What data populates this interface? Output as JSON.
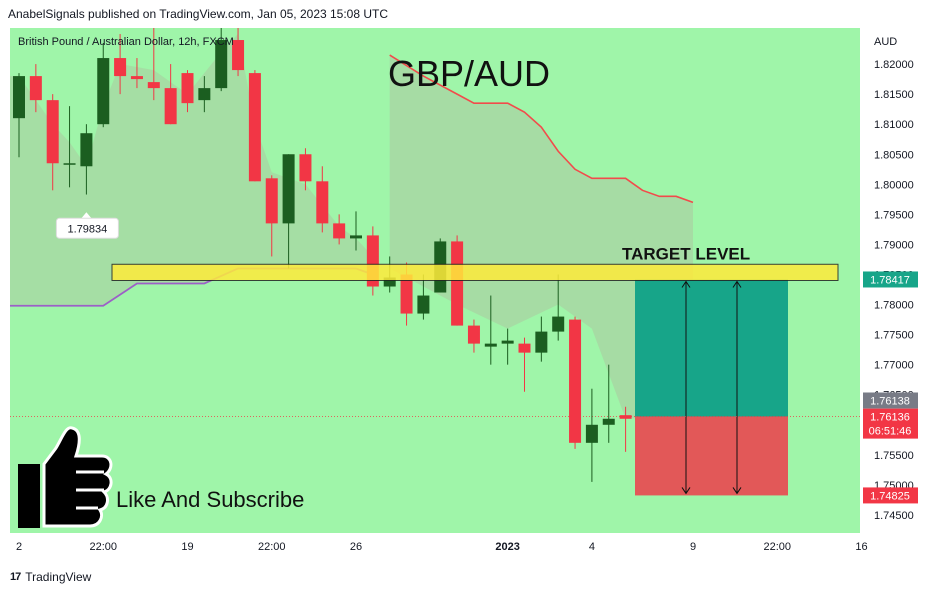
{
  "header": {
    "published_line": "AnabelSignals published on TradingView.com, Jan 05, 2023 15:08 UTC"
  },
  "footer": {
    "brand": "TradingView",
    "logo_glyph": "17"
  },
  "colors": {
    "background": "#9ff5a9",
    "up_candle": "#1b5e20",
    "down_candle": "#f23645",
    "ma_line": "#f24b4b",
    "ma_fill": "#a6d9a3",
    "purple_line": "#9c5fc7",
    "target_zone": "#ffeb3b",
    "profit_zone": "#17a589",
    "loss_zone": "#e25858",
    "last_price_badge": "#f23645",
    "prev_close_badge": "#787b86",
    "target_badge": "#17a589"
  },
  "chart_data": {
    "type": "candlestick",
    "symbol_line": "British Pound / Australian Dollar, 12h, FXCM",
    "title": "GBP/AUD",
    "currency": "AUD",
    "ylim": [
      1.742,
      1.826
    ],
    "y_ticks": [
      "1.82000",
      "1.81500",
      "1.81000",
      "1.80500",
      "1.80000",
      "1.79500",
      "1.79000",
      "1.78500",
      "1.78000",
      "1.77500",
      "1.77000",
      "1.76500",
      "1.76000",
      "1.75500",
      "1.75000",
      "1.74500"
    ],
    "x_ticks": [
      {
        "label": "2",
        "bar": 0
      },
      {
        "label": "22:00",
        "bar": 5
      },
      {
        "label": "19",
        "bar": 10
      },
      {
        "label": "22:00",
        "bar": 15
      },
      {
        "label": "26",
        "bar": 20
      },
      {
        "label": "2023",
        "bar": 29
      },
      {
        "label": "4",
        "bar": 34
      },
      {
        "label": "9",
        "bar": 40
      },
      {
        "label": "22:00",
        "bar": 45
      },
      {
        "label": "16",
        "bar": 50
      }
    ],
    "candles": [
      {
        "o": 1.811,
        "h": 1.8185,
        "l": 1.8045,
        "c": 1.818
      },
      {
        "o": 1.818,
        "h": 1.82,
        "l": 1.812,
        "c": 1.814
      },
      {
        "o": 1.814,
        "h": 1.815,
        "l": 1.799,
        "c": 1.8035
      },
      {
        "o": 1.8035,
        "h": 1.813,
        "l": 1.7995,
        "c": 1.8035
      },
      {
        "o": 1.803,
        "h": 1.81,
        "l": 1.7983,
        "c": 1.8085
      },
      {
        "o": 1.81,
        "h": 1.8235,
        "l": 1.8095,
        "c": 1.821
      },
      {
        "o": 1.821,
        "h": 1.825,
        "l": 1.815,
        "c": 1.818
      },
      {
        "o": 1.818,
        "h": 1.821,
        "l": 1.816,
        "c": 1.8175
      },
      {
        "o": 1.817,
        "h": 1.827,
        "l": 1.814,
        "c": 1.816
      },
      {
        "o": 1.816,
        "h": 1.82,
        "l": 1.81,
        "c": 1.81
      },
      {
        "o": 1.8185,
        "h": 1.819,
        "l": 1.812,
        "c": 1.8135
      },
      {
        "o": 1.814,
        "h": 1.818,
        "l": 1.812,
        "c": 1.816
      },
      {
        "o": 1.816,
        "h": 1.826,
        "l": 1.8155,
        "c": 1.824
      },
      {
        "o": 1.824,
        "h": 1.83,
        "l": 1.818,
        "c": 1.819
      },
      {
        "o": 1.8185,
        "h": 1.819,
        "l": 1.8005,
        "c": 1.8005
      },
      {
        "o": 1.801,
        "h": 1.8015,
        "l": 1.788,
        "c": 1.7935
      },
      {
        "o": 1.7935,
        "h": 1.805,
        "l": 1.786,
        "c": 1.805
      },
      {
        "o": 1.805,
        "h": 1.806,
        "l": 1.799,
        "c": 1.8005
      },
      {
        "o": 1.8005,
        "h": 1.803,
        "l": 1.792,
        "c": 1.7935
      },
      {
        "o": 1.7935,
        "h": 1.795,
        "l": 1.79,
        "c": 1.791
      },
      {
        "o": 1.791,
        "h": 1.7955,
        "l": 1.789,
        "c": 1.7915
      },
      {
        "o": 1.7915,
        "h": 1.793,
        "l": 1.7815,
        "c": 1.783
      },
      {
        "o": 1.783,
        "h": 1.788,
        "l": 1.782,
        "c": 1.7845
      },
      {
        "o": 1.785,
        "h": 1.787,
        "l": 1.7765,
        "c": 1.7785
      },
      {
        "o": 1.7785,
        "h": 1.785,
        "l": 1.7775,
        "c": 1.7815
      },
      {
        "o": 1.782,
        "h": 1.791,
        "l": 1.782,
        "c": 1.7905
      },
      {
        "o": 1.7905,
        "h": 1.7915,
        "l": 1.7765,
        "c": 1.7765
      },
      {
        "o": 1.7765,
        "h": 1.7775,
        "l": 1.772,
        "c": 1.7735
      },
      {
        "o": 1.773,
        "h": 1.7815,
        "l": 1.77,
        "c": 1.7735
      },
      {
        "o": 1.7735,
        "h": 1.776,
        "l": 1.77,
        "c": 1.774
      },
      {
        "o": 1.7735,
        "h": 1.7745,
        "l": 1.7655,
        "c": 1.772
      },
      {
        "o": 1.772,
        "h": 1.778,
        "l": 1.7705,
        "c": 1.7755
      },
      {
        "o": 1.7755,
        "h": 1.785,
        "l": 1.774,
        "c": 1.778
      },
      {
        "o": 1.7775,
        "h": 1.778,
        "l": 1.756,
        "c": 1.757
      },
      {
        "o": 1.757,
        "h": 1.766,
        "l": 1.7505,
        "c": 1.76
      },
      {
        "o": 1.76,
        "h": 1.77,
        "l": 1.757,
        "c": 1.761
      },
      {
        "o": 1.7616,
        "h": 1.763,
        "l": 1.7555,
        "c": 1.761
      }
    ],
    "ma_line": [
      {
        "bar": 22,
        "v": 1.8215
      },
      {
        "bar": 24,
        "v": 1.818
      },
      {
        "bar": 26,
        "v": 1.815
      },
      {
        "bar": 27,
        "v": 1.8135
      },
      {
        "bar": 29,
        "v": 1.8135
      },
      {
        "bar": 30,
        "v": 1.812
      },
      {
        "bar": 31,
        "v": 1.8095
      },
      {
        "bar": 32,
        "v": 1.8055
      },
      {
        "bar": 33,
        "v": 1.8025
      },
      {
        "bar": 34,
        "v": 1.801
      },
      {
        "bar": 36,
        "v": 1.801
      },
      {
        "bar": 37,
        "v": 1.799
      },
      {
        "bar": 38,
        "v": 1.798
      },
      {
        "bar": 39,
        "v": 1.798
      },
      {
        "bar": 40,
        "v": 1.797
      }
    ],
    "purple_line": [
      {
        "bar": -1,
        "v": 1.7798
      },
      {
        "bar": 5,
        "v": 1.7798
      },
      {
        "bar": 7,
        "v": 1.7835
      },
      {
        "bar": 11,
        "v": 1.7835
      },
      {
        "bar": 13,
        "v": 1.786
      },
      {
        "bar": 20,
        "v": 1.786
      },
      {
        "bar": 21,
        "v": 1.785
      }
    ],
    "target_zone": {
      "label": "TARGET LEVEL",
      "from": 1.784,
      "to": 1.7867
    },
    "position": {
      "entry": 1.76138,
      "target": 1.78417,
      "stop": 1.74825
    },
    "annotations": {
      "callout": "1.79834",
      "callout_bar": 4,
      "callout_price": 1.79834,
      "cta": "Like And Subscribe"
    },
    "price_badges": [
      {
        "label": "1.78417",
        "value": 1.78417,
        "kind": "target"
      },
      {
        "label": "1.76138",
        "value": 1.76138,
        "kind": "prev"
      },
      {
        "label": "1.76136",
        "value": 1.76136,
        "kind": "last"
      },
      {
        "label": "06:51:46",
        "value": 1.76136,
        "kind": "timer"
      },
      {
        "label": "1.74825",
        "value": 1.74825,
        "kind": "stop"
      }
    ]
  }
}
